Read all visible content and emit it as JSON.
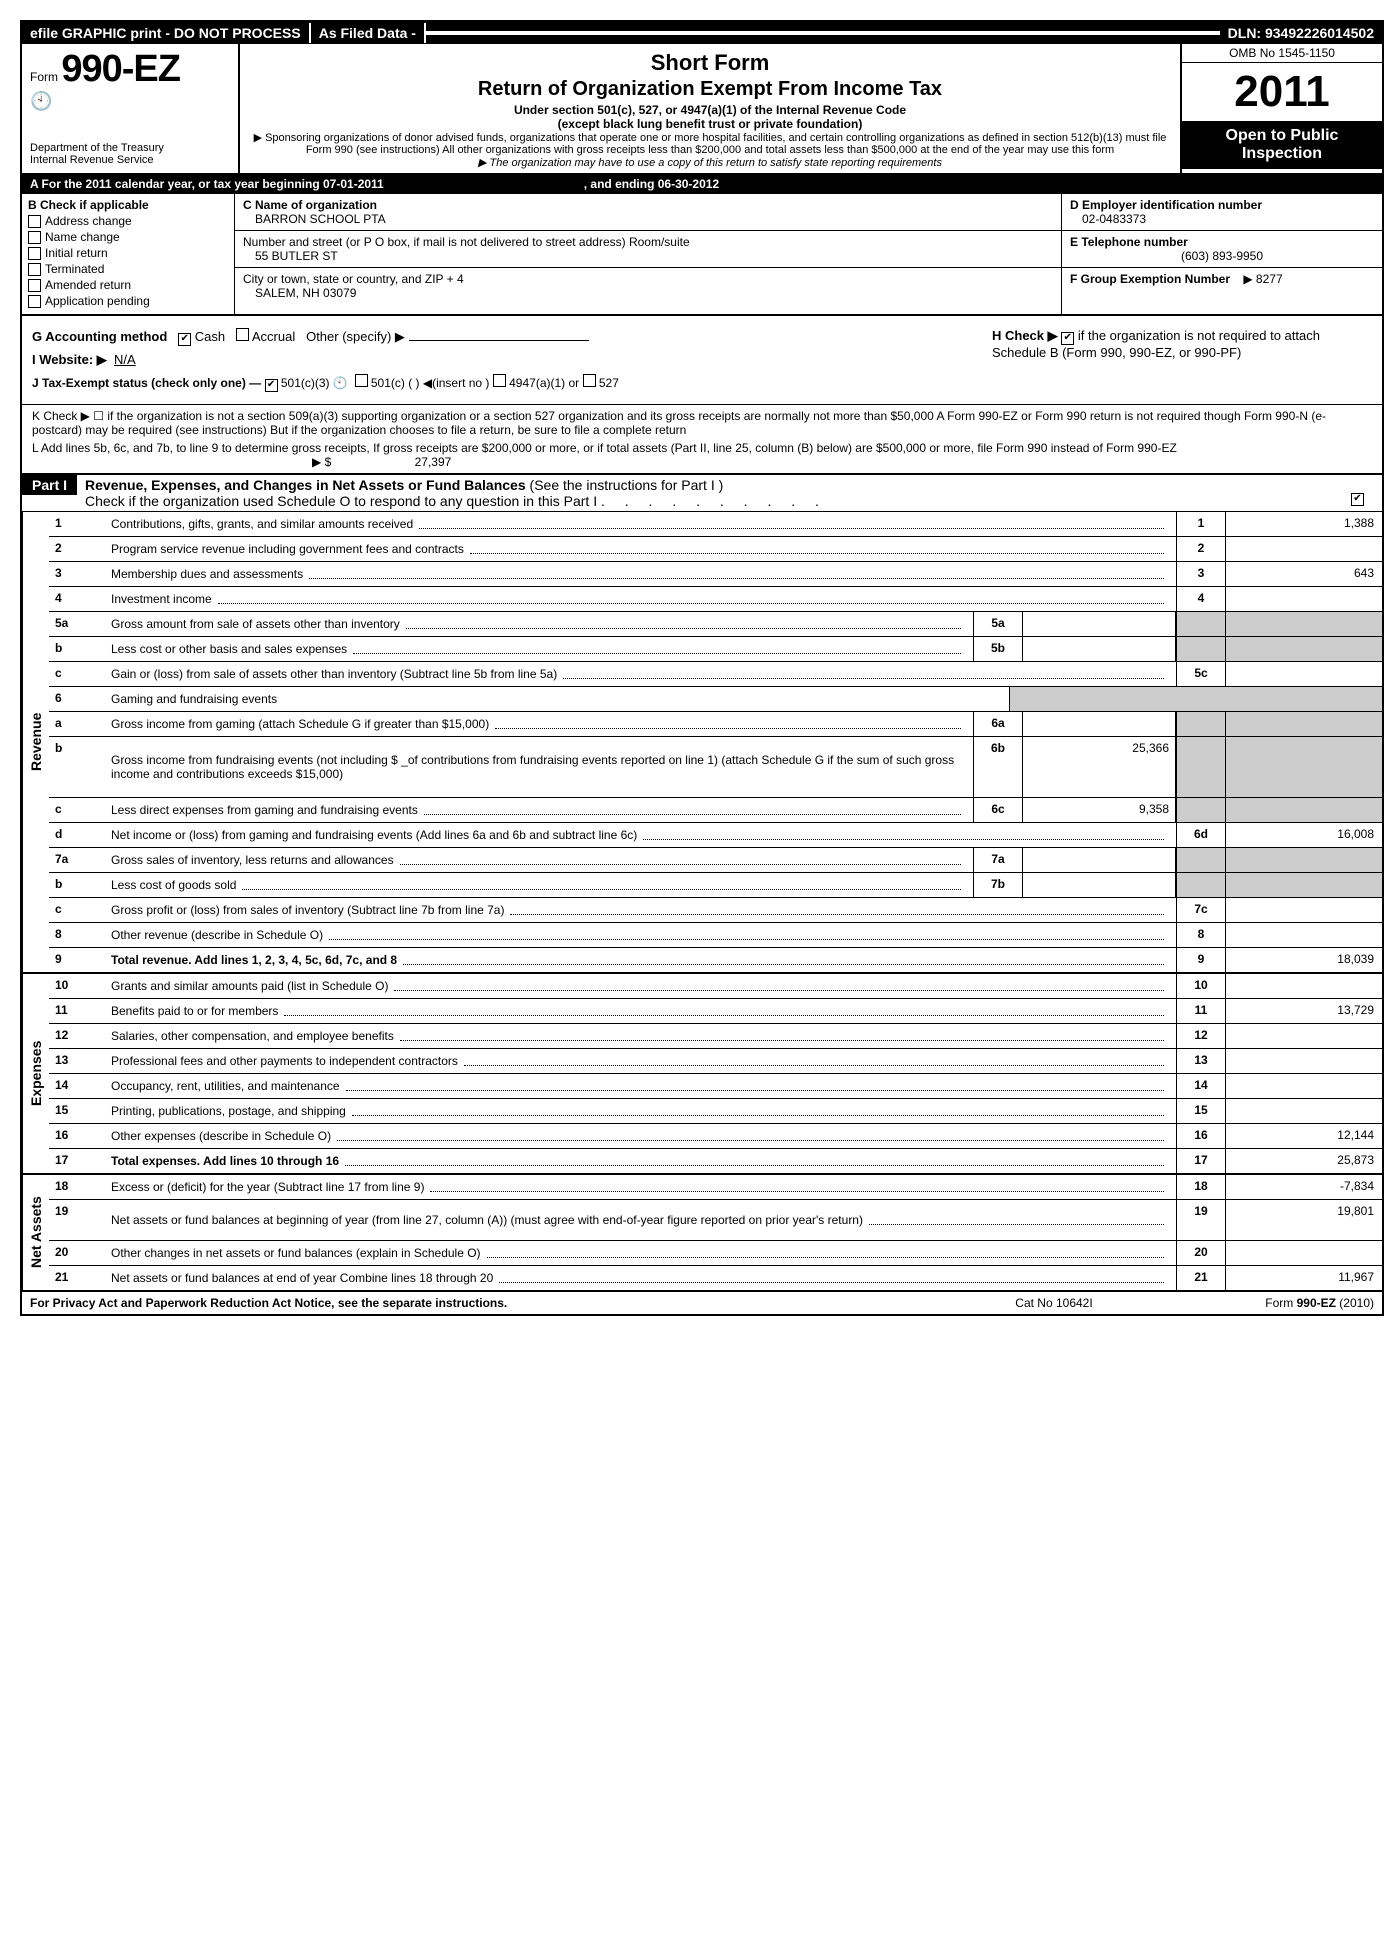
{
  "topbar": {
    "efile": "efile GRAPHIC print - DO NOT PROCESS",
    "asfiled": "As Filed Data -",
    "dln": "DLN: 93492226014502"
  },
  "header": {
    "form_prefix": "Form",
    "form_number": "990-EZ",
    "dept1": "Department of the Treasury",
    "dept2": "Internal Revenue Service",
    "short_form": "Short Form",
    "title": "Return of Organization Exempt From Income Tax",
    "sub1": "Under section 501(c), 527, or 4947(a)(1) of the Internal Revenue Code",
    "sub2": "(except black lung benefit trust or private foundation)",
    "fine1": "▶ Sponsoring organizations of donor advised funds, organizations that operate one or more hospital facilities, and certain controlling organizations as defined in section 512(b)(13) must file Form 990 (see instructions) All other organizations with gross receipts less than $200,000 and total assets less than $500,000 at the end of the year may use this form",
    "fine2": "▶ The organization may have to use a copy of this return to satisfy state reporting requirements",
    "omb": "OMB No 1545-1150",
    "year": "2011",
    "open": "Open to Public Inspection"
  },
  "row_a": {
    "text": "A  For the 2011 calendar year, or tax year beginning 07-01-2011",
    "end": ", and ending 06-30-2012"
  },
  "col_b": {
    "label": "B  Check if applicable",
    "opts": [
      "Address change",
      "Name change",
      "Initial return",
      "Terminated",
      "Amended return",
      "Application pending"
    ]
  },
  "col_c": {
    "name_label": "C Name of organization",
    "name": "BARRON SCHOOL PTA",
    "street_label": "Number and street (or P O box, if mail is not delivered to street address) Room/suite",
    "street": "55 BUTLER ST",
    "city_label": "City or town, state or country, and ZIP + 4",
    "city": "SALEM, NH  03079"
  },
  "col_d": {
    "label": "D Employer identification number",
    "val": "02-0483373"
  },
  "col_e": {
    "label": "E Telephone number",
    "val": "(603) 893-9950"
  },
  "col_f": {
    "label": "F Group Exemption Number",
    "val": "▶ 8277"
  },
  "line_g": {
    "label": "G Accounting method",
    "cash": "Cash",
    "accrual": "Accrual",
    "other": "Other (specify) ▶"
  },
  "line_h": {
    "text1": "H  Check ▶ ",
    "text2": " if the organization is not required to attach Schedule B (Form 990, 990-EZ, or 990-PF)"
  },
  "line_i": {
    "label": "I Website: ▶",
    "val": "N/A"
  },
  "line_j": {
    "label": "J Tax-Exempt status (check only one) —",
    "c3": "501(c)(3)",
    "c": "501(c) (   ) ◀(insert no )",
    "a1": "4947(a)(1) or",
    "s527": "527"
  },
  "line_k": "K Check ▶ ☐  if the organization is not a section 509(a)(3) supporting organization or a section 527 organization and its gross receipts are normally not more than   $50,000  A Form 990-EZ or Form 990 return is not required though Form 990-N (e-postcard) may be required (see instructions)  But if the   organization chooses to file a return, be sure to file a complete return",
  "line_l": {
    "text": "L Add lines 5b, 6c, and 7b, to line 9 to determine gross receipts, If gross receipts are $200,000 or more, or if total assets (Part II, line 25, column (B) below) are $500,000 or more, file Form 990 instead of Form 990-EZ",
    "amt_label": "▶ $",
    "amt": "27,397"
  },
  "part1": {
    "label": "Part I",
    "title": "Revenue, Expenses, and Changes in Net Assets or Fund Balances",
    "hint": "(See the instructions for Part I )",
    "check": "Check if the organization used Schedule O to respond to any question in this Part I"
  },
  "sides": {
    "rev": "Revenue",
    "exp": "Expenses",
    "na": "Net Assets"
  },
  "rows": {
    "1": {
      "n": "1",
      "d": "Contributions, gifts, grants, and similar amounts received",
      "rn": "1",
      "rv": "1,388"
    },
    "2": {
      "n": "2",
      "d": "Program service revenue including government fees and contracts",
      "rn": "2",
      "rv": ""
    },
    "3": {
      "n": "3",
      "d": "Membership dues and assessments",
      "rn": "3",
      "rv": "643"
    },
    "4": {
      "n": "4",
      "d": "Investment income",
      "rn": "4",
      "rv": ""
    },
    "5a": {
      "n": "5a",
      "d": "Gross amount from sale of assets other than inventory",
      "mn": "5a",
      "mv": ""
    },
    "5b": {
      "n": "b",
      "d": "Less  cost or other basis and sales expenses",
      "mn": "5b",
      "mv": ""
    },
    "5c": {
      "n": "c",
      "d": "Gain or (loss) from sale of assets other than inventory (Subtract line 5b from line 5a)",
      "rn": "5c",
      "rv": ""
    },
    "6": {
      "n": "6",
      "d": "Gaming and fundraising events"
    },
    "6a": {
      "n": "a",
      "d": "Gross income from gaming (attach Schedule G if greater than $15,000)",
      "mn": "6a",
      "mv": ""
    },
    "6b": {
      "n": "b",
      "d": "Gross income from fundraising events (not including $ _of contributions from fundraising events reported on line 1) (attach Schedule G if the sum of such gross income and contributions exceeds $15,000)",
      "mn": "6b",
      "mv": "25,366"
    },
    "6c": {
      "n": "c",
      "d": "Less  direct expenses from gaming and fundraising events",
      "mn": "6c",
      "mv": "9,358"
    },
    "6d": {
      "n": "d",
      "d": "Net income or (loss) from gaming and fundraising events (Add lines 6a and 6b and subtract line 6c)",
      "rn": "6d",
      "rv": "16,008"
    },
    "7a": {
      "n": "7a",
      "d": "Gross sales of inventory, less returns and allowances",
      "mn": "7a",
      "mv": ""
    },
    "7b": {
      "n": "b",
      "d": "Less  cost of goods sold",
      "mn": "7b",
      "mv": ""
    },
    "7c": {
      "n": "c",
      "d": "Gross profit or (loss) from sales of inventory (Subtract line 7b from line 7a)",
      "rn": "7c",
      "rv": ""
    },
    "8": {
      "n": "8",
      "d": "Other revenue (describe in Schedule O)",
      "rn": "8",
      "rv": ""
    },
    "9": {
      "n": "9",
      "d": "Total revenue. Add lines 1, 2, 3, 4, 5c, 6d, 7c, and 8",
      "rn": "9",
      "rv": "18,039"
    },
    "10": {
      "n": "10",
      "d": "Grants and similar amounts paid (list in Schedule O)",
      "rn": "10",
      "rv": ""
    },
    "11": {
      "n": "11",
      "d": "Benefits paid to or for members",
      "rn": "11",
      "rv": "13,729"
    },
    "12": {
      "n": "12",
      "d": "Salaries, other compensation, and employee benefits",
      "rn": "12",
      "rv": ""
    },
    "13": {
      "n": "13",
      "d": "Professional fees and other payments to independent contractors",
      "rn": "13",
      "rv": ""
    },
    "14": {
      "n": "14",
      "d": "Occupancy, rent, utilities, and maintenance",
      "rn": "14",
      "rv": ""
    },
    "15": {
      "n": "15",
      "d": "Printing, publications, postage, and shipping",
      "rn": "15",
      "rv": ""
    },
    "16": {
      "n": "16",
      "d": "Other expenses (describe in Schedule O)",
      "rn": "16",
      "rv": "12,144"
    },
    "17": {
      "n": "17",
      "d": "Total expenses. Add lines 10 through 16",
      "rn": "17",
      "rv": "25,873"
    },
    "18": {
      "n": "18",
      "d": "Excess or (deficit) for the year (Subtract line 17 from line 9)",
      "rn": "18",
      "rv": "-7,834"
    },
    "19": {
      "n": "19",
      "d": "Net assets or fund balances at beginning of year (from line 27, column (A)) (must agree with end-of-year figure reported on prior year's return)",
      "rn": "19",
      "rv": "19,801"
    },
    "20": {
      "n": "20",
      "d": "Other changes in net assets or fund balances (explain in Schedule O)",
      "rn": "20",
      "rv": ""
    },
    "21": {
      "n": "21",
      "d": "Net assets or fund balances at end of year  Combine lines 18 through 20",
      "rn": "21",
      "rv": "11,967"
    }
  },
  "footer": {
    "l": "For Privacy Act and Paperwork Reduction Act Notice, see the separate instructions.",
    "m": "Cat No  10642I",
    "r": "Form 990-EZ (2010)"
  }
}
